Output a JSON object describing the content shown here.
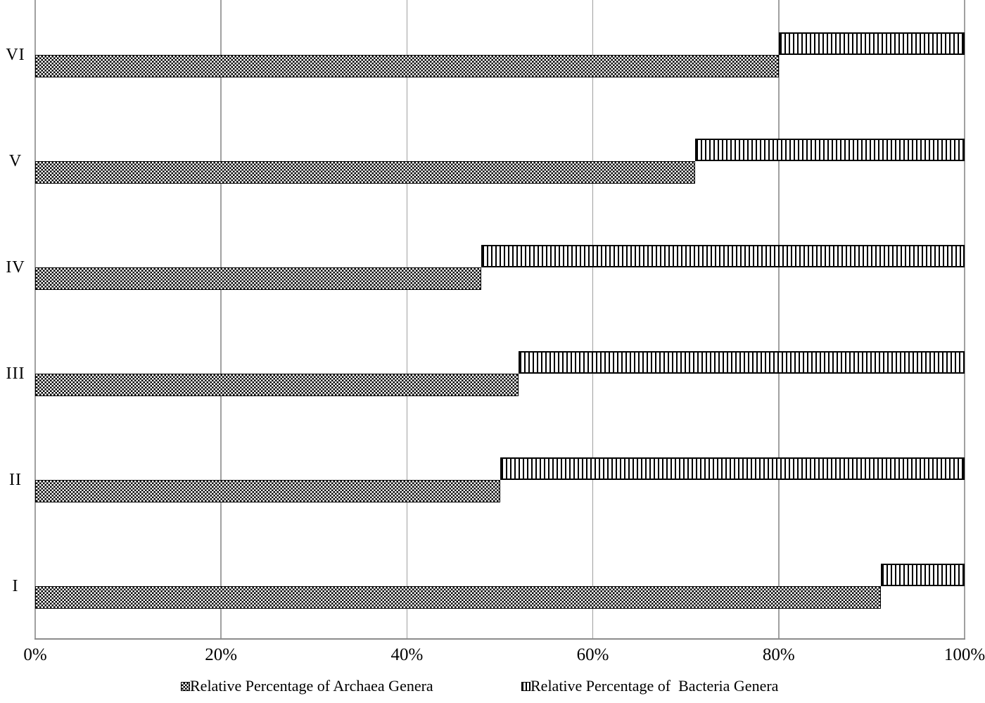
{
  "chart_data": {
    "type": "bar",
    "orientation": "horizontal",
    "stacked": true,
    "title": "",
    "xlabel": "",
    "ylabel": "",
    "categories": [
      "I",
      "II",
      "III",
      "IV",
      "V",
      "VI"
    ],
    "series": [
      {
        "name": "Relative Percentage of Archaea Genera",
        "pattern": "checkerboard",
        "swatch_icon": "checker-swatch-icon",
        "values": [
          91,
          50,
          52,
          48,
          71,
          80
        ]
      },
      {
        "name": "Relative Percentage of  Bacteria Genera",
        "pattern": "vertical-stripes",
        "swatch_icon": "vertical-stripes-swatch-icon",
        "values": [
          9,
          50,
          48,
          52,
          29,
          20
        ]
      }
    ],
    "xlim": [
      0,
      100
    ],
    "x_tick_labels": [
      "0%",
      "20%",
      "40%",
      "60%",
      "80%",
      "100%"
    ],
    "x_tick_values": [
      0,
      20,
      40,
      60,
      80,
      100
    ],
    "grid": "vertical-gridlines-on",
    "legend_position": "bottom",
    "colors": {
      "pattern_foreground": "#000000",
      "pattern_background": "#ffffff",
      "gridline": "#a0a0a0",
      "axis_line": "#8c8c8c",
      "text": "#000000",
      "background": "#ffffff"
    }
  }
}
